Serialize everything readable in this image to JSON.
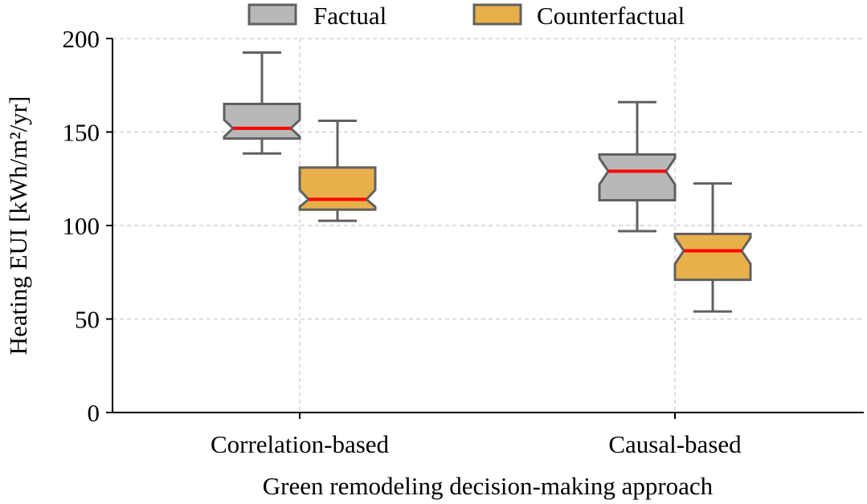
{
  "chart_data": {
    "type": "boxplot",
    "notched": true,
    "title": "",
    "xlabel": "Green remodeling decision-making approach",
    "ylabel": "Heating EUI [kWh/m²/yr]",
    "ylim": [
      0,
      200
    ],
    "yticks": [
      0,
      50,
      100,
      150,
      200
    ],
    "grid": true,
    "legend_position": "top-center",
    "categories": [
      "Correlation-based",
      "Causal-based"
    ],
    "series": [
      {
        "name": "Factual",
        "color": "#b8b8b8",
        "boxes": [
          {
            "category": "Correlation-based",
            "whisker_low": 138.5,
            "q1": 146.5,
            "median": 152,
            "q3": 165,
            "whisker_high": 192.5,
            "notch_low": 147.5,
            "notch_high": 156.5
          },
          {
            "category": "Causal-based",
            "whisker_low": 97,
            "q1": 113.5,
            "median": 129,
            "q3": 138,
            "whisker_high": 166,
            "notch_low": 122,
            "notch_high": 136
          }
        ]
      },
      {
        "name": "Counterfactual",
        "color": "#e8b04b",
        "boxes": [
          {
            "category": "Correlation-based",
            "whisker_low": 102.5,
            "q1": 108.5,
            "median": 114,
            "q3": 131,
            "whisker_high": 156,
            "notch_low": 110,
            "notch_high": 119
          },
          {
            "category": "Causal-based",
            "whisker_low": 54,
            "q1": 71,
            "median": 86.5,
            "q3": 95.5,
            "whisker_high": 122.5,
            "notch_low": 79.5,
            "notch_high": 93.5
          }
        ]
      }
    ],
    "median_color": "#ff0000",
    "edge_color": "#606060"
  }
}
